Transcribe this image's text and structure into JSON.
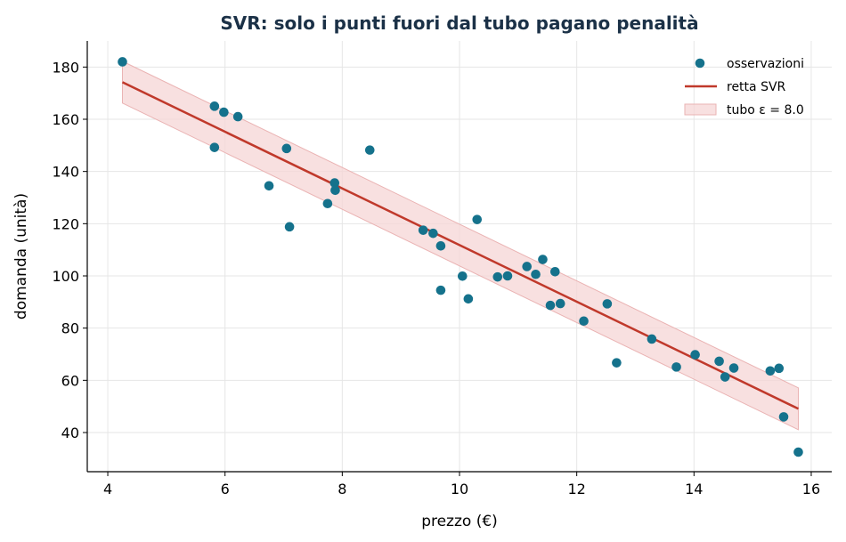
{
  "chart_data": {
    "type": "scatter",
    "title": "SVR: solo i punti fuori dal tubo pagano penalità",
    "xlabel": "prezzo (€)",
    "ylabel": "domanda (unità)",
    "xlim": [
      3.65,
      16.35
    ],
    "ylim": [
      25,
      190
    ],
    "x_ticks": [
      4,
      6,
      8,
      10,
      12,
      14,
      16
    ],
    "y_ticks": [
      40,
      60,
      80,
      100,
      120,
      140,
      160,
      180
    ],
    "grid": true,
    "legend_position": "top-right",
    "legend": [
      {
        "label": "osservazioni",
        "kind": "scatter"
      },
      {
        "label": "retta SVR",
        "kind": "line"
      },
      {
        "label": "tubo ε = 8.0",
        "kind": "band"
      }
    ],
    "epsilon": 8.0,
    "svr_line": {
      "x": [
        4.25,
        15.78
      ],
      "y": [
        174.2,
        49.1
      ]
    },
    "points": [
      {
        "x": 4.25,
        "y": 182.0
      },
      {
        "x": 5.82,
        "y": 165.0
      },
      {
        "x": 5.82,
        "y": 149.2
      },
      {
        "x": 5.98,
        "y": 162.7
      },
      {
        "x": 6.22,
        "y": 161.0
      },
      {
        "x": 6.75,
        "y": 134.5
      },
      {
        "x": 7.05,
        "y": 148.8
      },
      {
        "x": 7.1,
        "y": 118.8
      },
      {
        "x": 7.75,
        "y": 127.7
      },
      {
        "x": 7.87,
        "y": 135.6
      },
      {
        "x": 7.88,
        "y": 132.8
      },
      {
        "x": 8.47,
        "y": 148.2
      },
      {
        "x": 9.38,
        "y": 117.5
      },
      {
        "x": 9.55,
        "y": 116.3
      },
      {
        "x": 9.68,
        "y": 111.5
      },
      {
        "x": 9.68,
        "y": 94.5
      },
      {
        "x": 10.05,
        "y": 99.9
      },
      {
        "x": 10.15,
        "y": 91.2
      },
      {
        "x": 10.3,
        "y": 121.6
      },
      {
        "x": 10.65,
        "y": 99.6
      },
      {
        "x": 10.82,
        "y": 100.0
      },
      {
        "x": 11.15,
        "y": 103.6
      },
      {
        "x": 11.3,
        "y": 100.6
      },
      {
        "x": 11.42,
        "y": 106.3
      },
      {
        "x": 11.55,
        "y": 88.7
      },
      {
        "x": 11.63,
        "y": 101.6
      },
      {
        "x": 11.72,
        "y": 89.4
      },
      {
        "x": 12.12,
        "y": 82.7
      },
      {
        "x": 12.52,
        "y": 89.3
      },
      {
        "x": 12.68,
        "y": 66.7
      },
      {
        "x": 13.28,
        "y": 75.8
      },
      {
        "x": 13.7,
        "y": 65.1
      },
      {
        "x": 14.02,
        "y": 69.8
      },
      {
        "x": 14.43,
        "y": 67.3
      },
      {
        "x": 14.53,
        "y": 61.3
      },
      {
        "x": 14.68,
        "y": 64.7
      },
      {
        "x": 15.3,
        "y": 63.6
      },
      {
        "x": 15.45,
        "y": 64.6
      },
      {
        "x": 15.53,
        "y": 46.0
      },
      {
        "x": 15.78,
        "y": 32.5
      }
    ]
  },
  "colors": {
    "points": "#15728c",
    "line": "#c0392b",
    "band_fill": "#f5d5d5",
    "band_edge": "#eab3b3",
    "title": "#1b3147",
    "grid": "#e6e6e6"
  }
}
